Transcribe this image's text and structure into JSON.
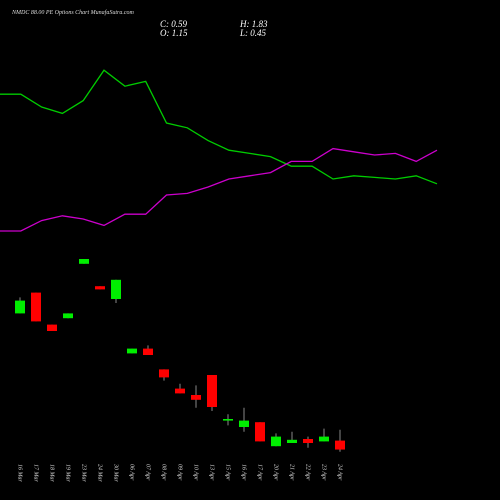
{
  "chart_data": [
    {
      "type": "candlestick",
      "title": "NMDC 88.00 PE Options Chart MunafaSutra.com",
      "header": [
        "C: 0.59",
        "H: 1.83",
        "O: 1.15",
        "L: 0.45"
      ],
      "categories": [
        "16 Mar",
        "17 Mar",
        "18 Mar",
        "19 Mar",
        "23 Mar",
        "24 Mar",
        "30 Mar",
        "06 Apr",
        "07 Apr",
        "08 Apr",
        "09 Apr",
        "10 Apr",
        "13 Apr",
        "15 Apr",
        "16 Apr",
        "17 Apr",
        "20 Apr",
        "21 Apr",
        "22 Apr",
        "23 Apr",
        "24 Apr"
      ],
      "open": [
        9.1,
        10.4,
        8.4,
        8.8,
        12.2,
        10.8,
        10.0,
        6.6,
        6.9,
        5.6,
        4.4,
        4.0,
        5.25,
        2.4,
        2.0,
        2.3,
        0.8,
        1.0,
        1.25,
        1.1,
        1.15
      ],
      "high": [
        10.1,
        10.4,
        8.4,
        9.1,
        12.5,
        10.8,
        11.2,
        6.9,
        7.1,
        5.6,
        4.7,
        4.6,
        5.25,
        2.8,
        3.2,
        2.3,
        1.6,
        1.7,
        1.4,
        1.9,
        1.83
      ],
      "low": [
        9.1,
        8.6,
        8.0,
        8.8,
        12.2,
        10.6,
        9.75,
        6.6,
        6.5,
        4.9,
        4.1,
        3.2,
        3.0,
        2.1,
        1.7,
        1.1,
        0.8,
        1.0,
        0.7,
        1.1,
        0.45
      ],
      "close": [
        9.9,
        8.6,
        8.0,
        9.1,
        12.5,
        10.6,
        11.2,
        6.9,
        6.5,
        5.1,
        4.1,
        3.7,
        3.25,
        2.5,
        2.4,
        1.1,
        1.4,
        1.2,
        1.0,
        1.4,
        0.59
      ],
      "up_color": "#00ee00",
      "down_color": "#ff0000",
      "ylim": [
        0,
        28
      ]
    },
    {
      "type": "line",
      "series": [
        {
          "color": "#00cc00",
          "values": [
            22.8,
            22.8,
            22.0,
            21.6,
            22.4,
            24.3,
            23.3,
            23.6,
            21.0,
            20.7,
            19.9,
            19.3,
            19.1,
            18.9,
            18.3,
            18.3,
            17.5,
            17.7,
            17.6,
            17.5,
            17.7,
            17.2
          ]
        },
        {
          "color": "#cc00cc",
          "values": [
            14.25,
            14.25,
            14.9,
            15.2,
            15.0,
            14.6,
            15.3,
            15.3,
            16.5,
            16.6,
            17.0,
            17.5,
            17.7,
            17.9,
            18.6,
            18.6,
            19.4,
            19.2,
            19.0,
            19.1,
            18.6,
            19.3
          ]
        }
      ],
      "ylim": [
        0,
        28
      ]
    }
  ]
}
